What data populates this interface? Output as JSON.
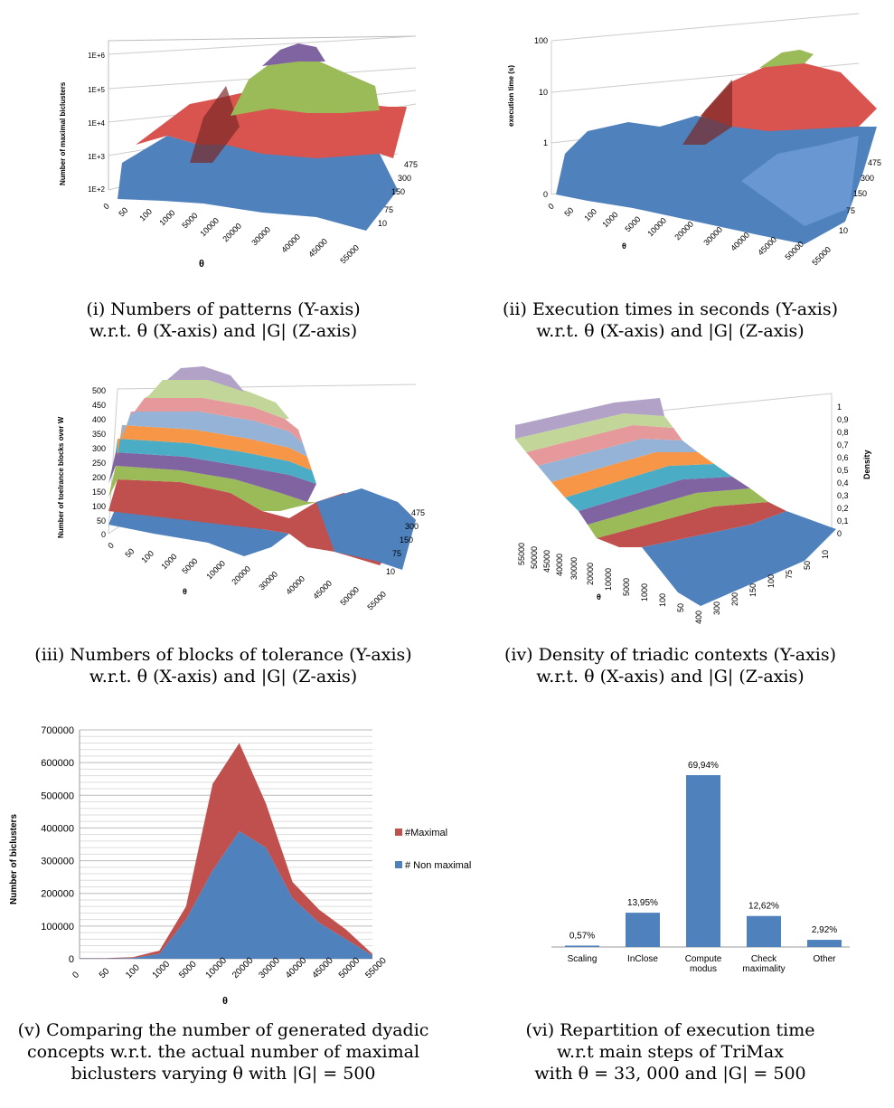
{
  "panels": [
    {
      "id": "i",
      "axis_y_label": "Number of maximal biclusters",
      "axis_x_label": "θ",
      "y_ticks": [
        "1E+2",
        "1E+3",
        "1E+4",
        "1E+5",
        "1E+6"
      ],
      "x_ticks": [
        "0",
        "50",
        "100",
        "1000",
        "5000",
        "10000",
        "20000",
        "30000",
        "40000",
        "45000",
        "55000"
      ],
      "z_ticks": [
        "475",
        "300",
        "150",
        "75",
        "10"
      ],
      "caption_line1": "(i) Numbers of patterns (Y-axis)",
      "caption_line2": "w.r.t. θ (X-axis) and |G| (Z-axis)"
    },
    {
      "id": "ii",
      "axis_y_label": "execution time (s)",
      "axis_x_label": "θ",
      "y_ticks": [
        "0",
        "1",
        "10",
        "100"
      ],
      "x_ticks": [
        "0",
        "50",
        "100",
        "1000",
        "5000",
        "10000",
        "20000",
        "30000",
        "40000",
        "45000",
        "50000",
        "55000"
      ],
      "z_ticks": [
        "475",
        "300",
        "150",
        "75",
        "10"
      ],
      "caption_line1": "(ii) Execution times in seconds (Y-axis)",
      "caption_line2": "w.r.t. θ (X-axis) and |G| (Z-axis)"
    },
    {
      "id": "iii",
      "axis_y_label": "Number of toelrance blocks over W",
      "axis_x_label": "θ",
      "y_ticks": [
        "0",
        "50",
        "100",
        "150",
        "200",
        "250",
        "300",
        "350",
        "400",
        "450",
        "500"
      ],
      "x_ticks": [
        "0",
        "50",
        "100",
        "1000",
        "5000",
        "10000",
        "20000",
        "30000",
        "40000",
        "45000",
        "50000",
        "55000"
      ],
      "z_ticks": [
        "475",
        "300",
        "150",
        "75",
        "10"
      ],
      "caption_line1": "(iii) Numbers of blocks of tolerance (Y-axis)",
      "caption_line2": "w.r.t. θ (X-axis) and |G| (Z-axis)"
    },
    {
      "id": "iv",
      "axis_y_label": "Density",
      "axis_x_label": "θ",
      "y_ticks": [
        "0",
        "0,1",
        "0,2",
        "0,3",
        "0,4",
        "0,5",
        "0,6",
        "0,7",
        "0,8",
        "0,9",
        "1"
      ],
      "x_ticks": [
        "55000",
        "50000",
        "45000",
        "40000",
        "30000",
        "20000",
        "10000",
        "5000",
        "1000",
        "100",
        "50"
      ],
      "z_ticks": [
        "400",
        "300",
        "200",
        "150",
        "100",
        "75",
        "50",
        "10"
      ],
      "caption_line1": "(iv) Density of triadic contexts (Y-axis)",
      "caption_line2": "w.r.t. θ (X-axis) and |G| (Z-axis)"
    }
  ],
  "chart_data": [
    {
      "type": "area",
      "xlabel": "θ",
      "ylabel": "Number of biclusters",
      "ylim": [
        0,
        700000
      ],
      "y_ticks": [
        0,
        100000,
        200000,
        300000,
        400000,
        500000,
        600000,
        700000
      ],
      "categories": [
        "0",
        "50",
        "100",
        "1000",
        "5000",
        "10000",
        "20000",
        "30000",
        "40000",
        "45000",
        "50000",
        "55000"
      ],
      "series": [
        {
          "name": "#Maximal",
          "color": "#c0504d",
          "values": [
            1000,
            1000,
            3000,
            10000,
            40000,
            265000,
            270000,
            135000,
            50000,
            40000,
            30000,
            5000
          ]
        },
        {
          "name": "# Non maximal",
          "color": "#4f81bd",
          "values": [
            1000,
            1000,
            2000,
            15000,
            120000,
            270000,
            390000,
            340000,
            185000,
            110000,
            60000,
            10000
          ]
        }
      ],
      "legend": "right",
      "caption_line1": "(v) Comparing the number of generated dyadic",
      "caption_line2": "concepts w.r.t. the actual number of maximal",
      "caption_line3": "biclusters varying θ with |G| = 500"
    },
    {
      "type": "bar",
      "categories": [
        [
          "Scaling"
        ],
        [
          "InClose"
        ],
        [
          "Compute",
          "modus"
        ],
        [
          "Check",
          "maximality"
        ],
        [
          "Other"
        ]
      ],
      "values": [
        0.57,
        13.95,
        69.94,
        12.62,
        2.92
      ],
      "data_labels": [
        "0,57%",
        "13,95%",
        "69,94%",
        "12,62%",
        "2,92%"
      ],
      "color": "#4f81bd",
      "caption_line1": "(vi) Repartition of execution time",
      "caption_line2": "w.r.t main steps of TriMax",
      "caption_line3": "with θ = 33, 000 and |G| = 500"
    }
  ]
}
